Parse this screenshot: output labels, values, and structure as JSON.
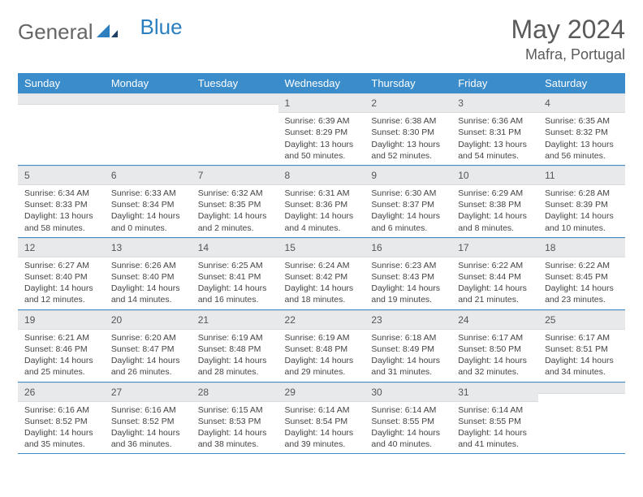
{
  "brand": {
    "part1": "General",
    "part2": "Blue"
  },
  "header": {
    "month_title": "May 2024",
    "location": "Mafra, Portugal"
  },
  "colors": {
    "header_bg": "#3b8ccb",
    "header_text": "#ffffff",
    "daynum_bg": "#e8e9eb",
    "text": "#444444",
    "row_border": "#3b8ccb"
  },
  "weekdays": [
    "Sunday",
    "Monday",
    "Tuesday",
    "Wednesday",
    "Thursday",
    "Friday",
    "Saturday"
  ],
  "weeks": [
    [
      {
        "num": "",
        "lines": [
          "",
          "",
          "",
          ""
        ]
      },
      {
        "num": "",
        "lines": [
          "",
          "",
          "",
          ""
        ]
      },
      {
        "num": "",
        "lines": [
          "",
          "",
          "",
          ""
        ]
      },
      {
        "num": "1",
        "lines": [
          "Sunrise: 6:39 AM",
          "Sunset: 8:29 PM",
          "Daylight: 13 hours",
          "and 50 minutes."
        ]
      },
      {
        "num": "2",
        "lines": [
          "Sunrise: 6:38 AM",
          "Sunset: 8:30 PM",
          "Daylight: 13 hours",
          "and 52 minutes."
        ]
      },
      {
        "num": "3",
        "lines": [
          "Sunrise: 6:36 AM",
          "Sunset: 8:31 PM",
          "Daylight: 13 hours",
          "and 54 minutes."
        ]
      },
      {
        "num": "4",
        "lines": [
          "Sunrise: 6:35 AM",
          "Sunset: 8:32 PM",
          "Daylight: 13 hours",
          "and 56 minutes."
        ]
      }
    ],
    [
      {
        "num": "5",
        "lines": [
          "Sunrise: 6:34 AM",
          "Sunset: 8:33 PM",
          "Daylight: 13 hours",
          "and 58 minutes."
        ]
      },
      {
        "num": "6",
        "lines": [
          "Sunrise: 6:33 AM",
          "Sunset: 8:34 PM",
          "Daylight: 14 hours",
          "and 0 minutes."
        ]
      },
      {
        "num": "7",
        "lines": [
          "Sunrise: 6:32 AM",
          "Sunset: 8:35 PM",
          "Daylight: 14 hours",
          "and 2 minutes."
        ]
      },
      {
        "num": "8",
        "lines": [
          "Sunrise: 6:31 AM",
          "Sunset: 8:36 PM",
          "Daylight: 14 hours",
          "and 4 minutes."
        ]
      },
      {
        "num": "9",
        "lines": [
          "Sunrise: 6:30 AM",
          "Sunset: 8:37 PM",
          "Daylight: 14 hours",
          "and 6 minutes."
        ]
      },
      {
        "num": "10",
        "lines": [
          "Sunrise: 6:29 AM",
          "Sunset: 8:38 PM",
          "Daylight: 14 hours",
          "and 8 minutes."
        ]
      },
      {
        "num": "11",
        "lines": [
          "Sunrise: 6:28 AM",
          "Sunset: 8:39 PM",
          "Daylight: 14 hours",
          "and 10 minutes."
        ]
      }
    ],
    [
      {
        "num": "12",
        "lines": [
          "Sunrise: 6:27 AM",
          "Sunset: 8:40 PM",
          "Daylight: 14 hours",
          "and 12 minutes."
        ]
      },
      {
        "num": "13",
        "lines": [
          "Sunrise: 6:26 AM",
          "Sunset: 8:40 PM",
          "Daylight: 14 hours",
          "and 14 minutes."
        ]
      },
      {
        "num": "14",
        "lines": [
          "Sunrise: 6:25 AM",
          "Sunset: 8:41 PM",
          "Daylight: 14 hours",
          "and 16 minutes."
        ]
      },
      {
        "num": "15",
        "lines": [
          "Sunrise: 6:24 AM",
          "Sunset: 8:42 PM",
          "Daylight: 14 hours",
          "and 18 minutes."
        ]
      },
      {
        "num": "16",
        "lines": [
          "Sunrise: 6:23 AM",
          "Sunset: 8:43 PM",
          "Daylight: 14 hours",
          "and 19 minutes."
        ]
      },
      {
        "num": "17",
        "lines": [
          "Sunrise: 6:22 AM",
          "Sunset: 8:44 PM",
          "Daylight: 14 hours",
          "and 21 minutes."
        ]
      },
      {
        "num": "18",
        "lines": [
          "Sunrise: 6:22 AM",
          "Sunset: 8:45 PM",
          "Daylight: 14 hours",
          "and 23 minutes."
        ]
      }
    ],
    [
      {
        "num": "19",
        "lines": [
          "Sunrise: 6:21 AM",
          "Sunset: 8:46 PM",
          "Daylight: 14 hours",
          "and 25 minutes."
        ]
      },
      {
        "num": "20",
        "lines": [
          "Sunrise: 6:20 AM",
          "Sunset: 8:47 PM",
          "Daylight: 14 hours",
          "and 26 minutes."
        ]
      },
      {
        "num": "21",
        "lines": [
          "Sunrise: 6:19 AM",
          "Sunset: 8:48 PM",
          "Daylight: 14 hours",
          "and 28 minutes."
        ]
      },
      {
        "num": "22",
        "lines": [
          "Sunrise: 6:19 AM",
          "Sunset: 8:48 PM",
          "Daylight: 14 hours",
          "and 29 minutes."
        ]
      },
      {
        "num": "23",
        "lines": [
          "Sunrise: 6:18 AM",
          "Sunset: 8:49 PM",
          "Daylight: 14 hours",
          "and 31 minutes."
        ]
      },
      {
        "num": "24",
        "lines": [
          "Sunrise: 6:17 AM",
          "Sunset: 8:50 PM",
          "Daylight: 14 hours",
          "and 32 minutes."
        ]
      },
      {
        "num": "25",
        "lines": [
          "Sunrise: 6:17 AM",
          "Sunset: 8:51 PM",
          "Daylight: 14 hours",
          "and 34 minutes."
        ]
      }
    ],
    [
      {
        "num": "26",
        "lines": [
          "Sunrise: 6:16 AM",
          "Sunset: 8:52 PM",
          "Daylight: 14 hours",
          "and 35 minutes."
        ]
      },
      {
        "num": "27",
        "lines": [
          "Sunrise: 6:16 AM",
          "Sunset: 8:52 PM",
          "Daylight: 14 hours",
          "and 36 minutes."
        ]
      },
      {
        "num": "28",
        "lines": [
          "Sunrise: 6:15 AM",
          "Sunset: 8:53 PM",
          "Daylight: 14 hours",
          "and 38 minutes."
        ]
      },
      {
        "num": "29",
        "lines": [
          "Sunrise: 6:14 AM",
          "Sunset: 8:54 PM",
          "Daylight: 14 hours",
          "and 39 minutes."
        ]
      },
      {
        "num": "30",
        "lines": [
          "Sunrise: 6:14 AM",
          "Sunset: 8:55 PM",
          "Daylight: 14 hours",
          "and 40 minutes."
        ]
      },
      {
        "num": "31",
        "lines": [
          "Sunrise: 6:14 AM",
          "Sunset: 8:55 PM",
          "Daylight: 14 hours",
          "and 41 minutes."
        ]
      },
      {
        "num": "",
        "lines": [
          "",
          "",
          "",
          ""
        ]
      }
    ]
  ]
}
